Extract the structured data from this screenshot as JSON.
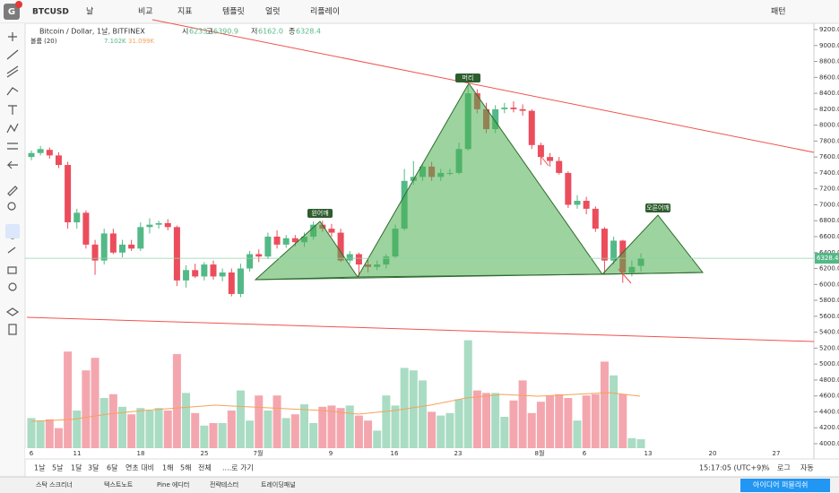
{
  "toolbar": {
    "symbol": "BTCUSD",
    "interval": "날",
    "items": [
      "비교",
      "지표",
      "템플릿",
      "얼럿",
      "리플레이"
    ],
    "pattern": "패턴"
  },
  "legend": {
    "title": "Bitcoin / Dollar, 1날, BITFINEX",
    "open_label": "시",
    "open": "6233.1",
    "high_label": "고",
    "high": "6390.9",
    "low_label": "저",
    "low": "6162.0",
    "close_label": "종",
    "close": "6328.4",
    "volume_label": "볼륨 (20)",
    "volume": "7.102K",
    "volume_ma": "31.099K"
  },
  "annotations": [
    "왼어깨",
    "머리",
    "오른어깨"
  ],
  "price_axis": {
    "ylim": [
      4000,
      9200
    ],
    "yticks": [
      {
        "value": 9200,
        "label": "9200.0"
      },
      {
        "value": 9000,
        "label": "9000.0"
      },
      {
        "value": 8800,
        "label": "8800.0"
      },
      {
        "value": 8600,
        "label": "8600.0"
      },
      {
        "value": 8400,
        "label": "8400.0"
      },
      {
        "value": 8200,
        "label": "8200.0"
      },
      {
        "value": 8000,
        "label": "8000.0"
      },
      {
        "value": 7800,
        "label": "7800.0"
      },
      {
        "value": 7600,
        "label": "7600.0"
      },
      {
        "value": 7400,
        "label": "7400.0"
      },
      {
        "value": 7200,
        "label": "7200.0"
      },
      {
        "value": 7000,
        "label": "7000.0"
      },
      {
        "value": 6800,
        "label": "6800.0"
      },
      {
        "value": 6600,
        "label": "6600.0"
      },
      {
        "value": 6400,
        "label": "6400.0"
      },
      {
        "value": 6200,
        "label": "6200.0"
      },
      {
        "value": 6000,
        "label": "6000.0"
      },
      {
        "value": 5800,
        "label": "5800.0"
      },
      {
        "value": 5600,
        "label": "5600.0"
      },
      {
        "value": 5400,
        "label": "5400.0"
      },
      {
        "value": 5200,
        "label": "5200.0"
      },
      {
        "value": 5000,
        "label": "5000.0"
      },
      {
        "value": 4800,
        "label": "4800.0"
      },
      {
        "value": 4600,
        "label": "4600.0"
      },
      {
        "value": 4400,
        "label": "4400.0"
      },
      {
        "value": 4200,
        "label": "4200.0"
      },
      {
        "value": 4000,
        "label": "4000.0"
      }
    ],
    "last": {
      "value": 6328.4,
      "label": "6328.4"
    }
  },
  "time_axis": [
    "6",
    "11",
    "18",
    "25",
    "7월",
    "9",
    "16",
    "23",
    "8월",
    "6",
    "13",
    "20",
    "27"
  ],
  "candles": [
    [
      7600,
      7680,
      7560,
      7650
    ],
    [
      7650,
      7740,
      7620,
      7700
    ],
    [
      7690,
      7720,
      7580,
      7620
    ],
    [
      7620,
      7660,
      7460,
      7500
    ],
    [
      7500,
      7540,
      6700,
      6780
    ],
    [
      6780,
      6950,
      6700,
      6900
    ],
    [
      6900,
      6930,
      6450,
      6500
    ],
    [
      6500,
      6560,
      6120,
      6300
    ],
    [
      6300,
      6700,
      6250,
      6640
    ],
    [
      6640,
      6700,
      6380,
      6400
    ],
    [
      6400,
      6560,
      6340,
      6500
    ],
    [
      6500,
      6560,
      6420,
      6450
    ],
    [
      6450,
      6780,
      6420,
      6720
    ],
    [
      6720,
      6830,
      6640,
      6750
    ],
    [
      6750,
      6800,
      6700,
      6770
    ],
    [
      6770,
      6820,
      6680,
      6720
    ],
    [
      6720,
      6740,
      5980,
      6050
    ],
    [
      6050,
      6240,
      5960,
      6180
    ],
    [
      6180,
      6260,
      6080,
      6100
    ],
    [
      6100,
      6280,
      6050,
      6250
    ],
    [
      6250,
      6300,
      6060,
      6100
    ],
    [
      6100,
      6200,
      6040,
      6150
    ],
    [
      6150,
      6200,
      5850,
      5880
    ],
    [
      5880,
      6260,
      5840,
      6200
    ],
    [
      6200,
      6420,
      6160,
      6380
    ],
    [
      6380,
      6440,
      6280,
      6350
    ],
    [
      6350,
      6650,
      6320,
      6600
    ],
    [
      6600,
      6680,
      6450,
      6500
    ],
    [
      6500,
      6620,
      6460,
      6580
    ],
    [
      6580,
      6620,
      6480,
      6530
    ],
    [
      6530,
      6650,
      6470,
      6600
    ],
    [
      6600,
      6790,
      6560,
      6750
    ],
    [
      6750,
      6800,
      6660,
      6700
    ],
    [
      6700,
      6760,
      6600,
      6650
    ],
    [
      6650,
      6700,
      6280,
      6300
    ],
    [
      6300,
      6420,
      6260,
      6380
    ],
    [
      6380,
      6400,
      6100,
      6250
    ],
    [
      6250,
      6330,
      6150,
      6220
    ],
    [
      6220,
      6300,
      6180,
      6250
    ],
    [
      6250,
      6380,
      6200,
      6350
    ],
    [
      6350,
      6750,
      6330,
      6700
    ],
    [
      6700,
      7450,
      6680,
      7300
    ],
    [
      7300,
      7550,
      7250,
      7350
    ],
    [
      7350,
      7520,
      7300,
      7480
    ],
    [
      7480,
      7540,
      7300,
      7350
    ],
    [
      7350,
      7450,
      7300,
      7400
    ],
    [
      7400,
      7450,
      7370,
      7400
    ],
    [
      7400,
      7780,
      7380,
      7700
    ],
    [
      7700,
      8500,
      7680,
      8400
    ],
    [
      8400,
      8450,
      8150,
      8200
    ],
    [
      8200,
      8280,
      7900,
      7950
    ],
    [
      7950,
      8250,
      7900,
      8200
    ],
    [
      8200,
      8280,
      8150,
      8220
    ],
    [
      8220,
      8300,
      8160,
      8200
    ],
    [
      8200,
      8260,
      8120,
      8180
    ],
    [
      8180,
      8200,
      7700,
      7750
    ],
    [
      7750,
      7780,
      7500,
      7600
    ],
    [
      7600,
      7650,
      7480,
      7550
    ],
    [
      7550,
      7600,
      7380,
      7400
    ],
    [
      7400,
      7420,
      6960,
      7000
    ],
    [
      7000,
      7120,
      6950,
      7050
    ],
    [
      7050,
      7100,
      6880,
      6950
    ],
    [
      6950,
      6980,
      6660,
      6700
    ],
    [
      6700,
      6720,
      6120,
      6300
    ],
    [
      6300,
      6600,
      6250,
      6550
    ],
    [
      6550,
      6560,
      6020,
      6150
    ],
    [
      6150,
      6300,
      6100,
      6220
    ],
    [
      6233.1,
      6390.9,
      6162.0,
      6328.4
    ]
  ],
  "volumes": [
    24,
    22,
    23,
    16,
    77,
    30,
    62,
    72,
    40,
    43,
    33,
    27,
    32,
    30,
    32,
    30,
    75,
    44,
    28,
    18,
    20,
    20,
    30,
    46,
    22,
    42,
    30,
    42,
    24,
    27,
    35,
    20,
    33,
    34,
    32,
    34,
    26,
    22,
    14,
    42,
    34,
    64,
    62,
    54,
    29,
    26,
    28,
    39,
    86,
    46,
    44,
    44,
    25,
    38,
    54,
    28,
    37,
    42,
    43,
    40,
    22,
    42,
    43,
    69,
    58,
    43,
    8,
    7.102
  ],
  "range_bar": {
    "ranges": [
      "1날",
      "5날",
      "1달",
      "3달",
      "6달",
      "연초 대비",
      "1해",
      "5해",
      "전체"
    ],
    "goto": "....로 가기",
    "clock": "15:17:05 (UTC+9)",
    "pct": "%",
    "log": "로그",
    "auto": "자동"
  },
  "bottom_panel": {
    "tabs": [
      "스탁 스크리너",
      "텍스트노트",
      "Pine 에디터",
      "전략테스터",
      "트레이딩패널"
    ],
    "publish": "아이디어 퍼블리쉬"
  }
}
